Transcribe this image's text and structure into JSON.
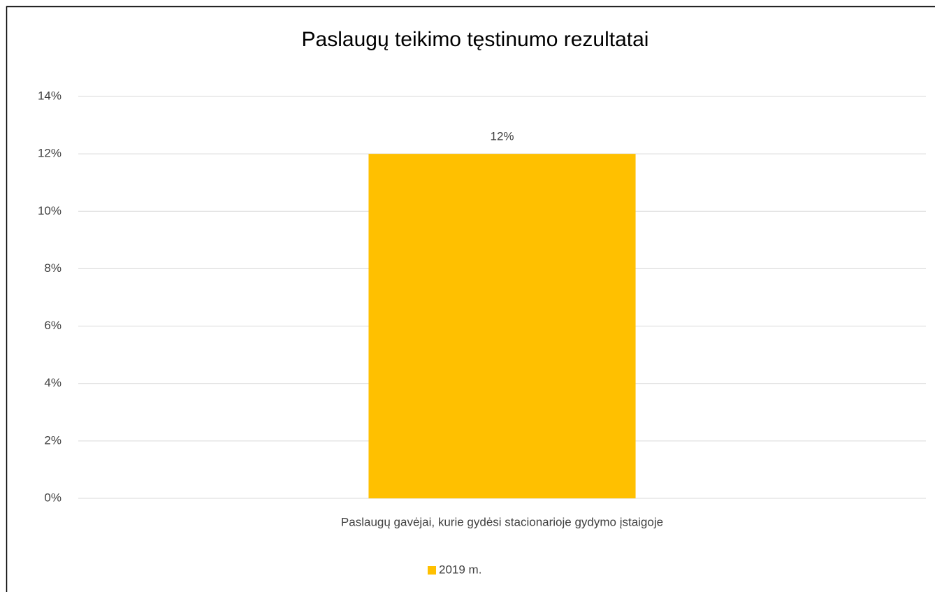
{
  "chart_data": {
    "type": "bar",
    "title": "Paslaugų teikimo tęstinumo rezultatai",
    "categories": [
      "Paslaugų gavėjai, kurie gydėsi stacionarioje gydymo įstaigoje"
    ],
    "series": [
      {
        "name": "2019 m.",
        "color": "#ffc000",
        "values": [
          12
        ],
        "value_labels": [
          "12%"
        ]
      }
    ],
    "ylim": [
      0,
      14
    ],
    "yticks": [
      {
        "value": 0,
        "label": "0%"
      },
      {
        "value": 2,
        "label": "2%"
      },
      {
        "value": 4,
        "label": "4%"
      },
      {
        "value": 6,
        "label": "6%"
      },
      {
        "value": 8,
        "label": "8%"
      },
      {
        "value": 10,
        "label": "10%"
      },
      {
        "value": 12,
        "label": "12%"
      },
      {
        "value": 14,
        "label": "14%"
      }
    ],
    "grid": true,
    "legend": "bottom"
  }
}
